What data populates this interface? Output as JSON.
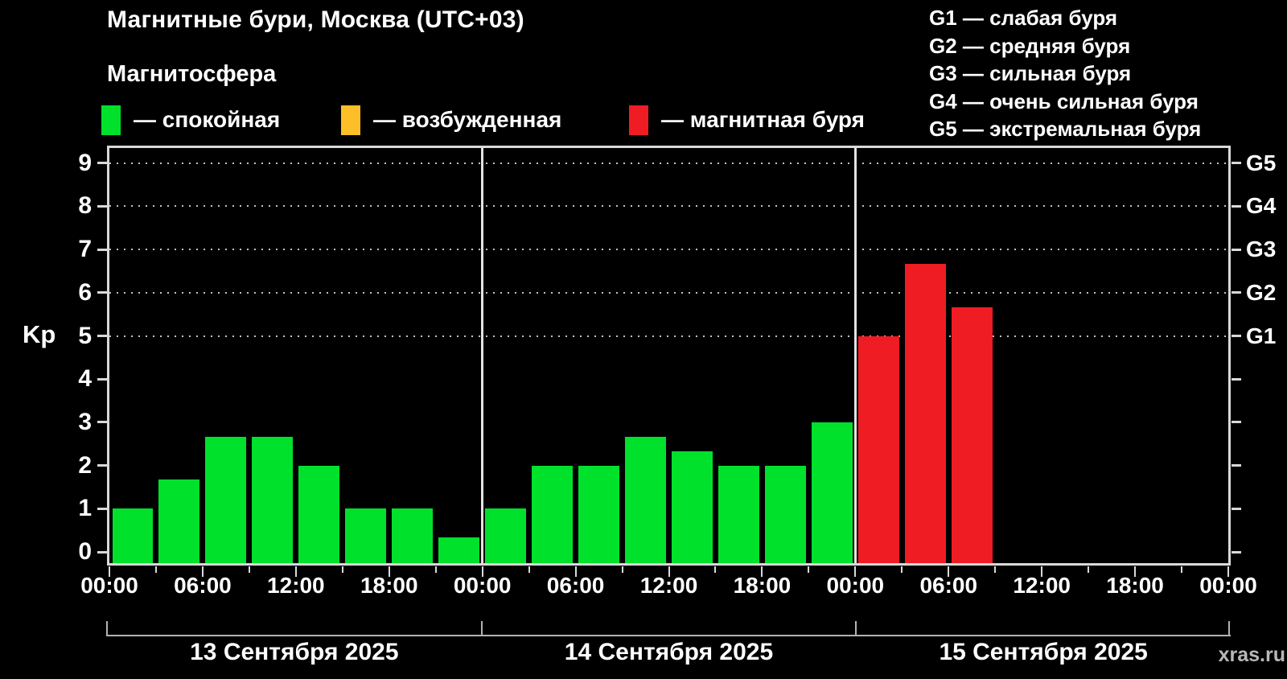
{
  "title": "Магнитные бури, Москва (UTC+03)",
  "legend": {
    "heading": "Магнитосфера",
    "items": [
      {
        "status": "quiet",
        "label": "— спокойная",
        "color": "#00e12c"
      },
      {
        "status": "excited",
        "label": "— возбужденная",
        "color": "#fcbf27"
      },
      {
        "status": "storm",
        "label": "— магнитная буря",
        "color": "#ef1c24"
      }
    ]
  },
  "g_legend": [
    "G1 — слабая буря",
    "G2 — средняя буря",
    "G3 — сильная буря",
    "G4 — очень сильная буря",
    "G5 — экстремальная буря"
  ],
  "chart_data": {
    "type": "bar",
    "title": "Магнитные бури, Москва (UTC+03)",
    "ylabel": "Kp",
    "ylim": [
      0,
      9.4
    ],
    "y_ticks": [
      0,
      1,
      2,
      3,
      4,
      5,
      6,
      7,
      8,
      9
    ],
    "gridlines_at": [
      5,
      6,
      7,
      8,
      9
    ],
    "grid": "dotted horizontal lines at storm levels only",
    "legend_position": "top",
    "right_axis_labels": [
      {
        "kp": 5,
        "label": "G1"
      },
      {
        "kp": 6,
        "label": "G2"
      },
      {
        "kp": 7,
        "label": "G3"
      },
      {
        "kp": 8,
        "label": "G4"
      },
      {
        "kp": 9,
        "label": "G5"
      }
    ],
    "x_tick_labels": [
      "00:00",
      "06:00",
      "12:00",
      "18:00",
      "00:00",
      "06:00",
      "12:00",
      "18:00",
      "00:00",
      "06:00",
      "12:00",
      "18:00",
      "00:00"
    ],
    "hours_per_bar": 3,
    "days": [
      {
        "date": "13 Сентября 2025",
        "values": [
          1.0,
          1.67,
          2.67,
          2.67,
          2.0,
          1.0,
          1.0,
          0.33
        ],
        "statuses": [
          "quiet",
          "quiet",
          "quiet",
          "quiet",
          "quiet",
          "quiet",
          "quiet",
          "quiet"
        ]
      },
      {
        "date": "14 Сентября 2025",
        "values": [
          1.0,
          2.0,
          2.0,
          2.67,
          2.33,
          2.0,
          2.0,
          3.0
        ],
        "statuses": [
          "quiet",
          "quiet",
          "quiet",
          "quiet",
          "quiet",
          "quiet",
          "quiet",
          "quiet"
        ]
      },
      {
        "date": "15 Сентября 2025",
        "values": [
          5.0,
          6.67,
          5.67,
          null,
          null,
          null,
          null,
          null
        ],
        "statuses": [
          "storm",
          "storm",
          "storm",
          null,
          null,
          null,
          null,
          null
        ]
      }
    ],
    "colors": {
      "quiet": "#00e12c",
      "excited": "#fcbf27",
      "storm": "#ef1c24"
    }
  },
  "watermark": "xras.ru"
}
